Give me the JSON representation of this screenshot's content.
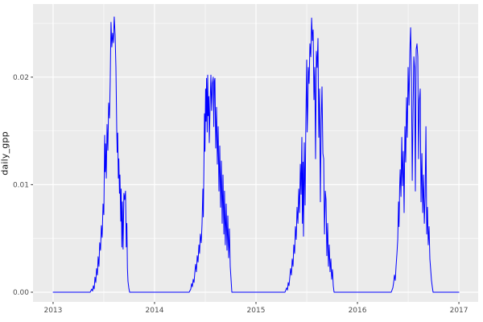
{
  "colors": {
    "background": "#FFFFFF",
    "panel": "#EBEBEB",
    "grid_major": "#FFFFFF",
    "grid_minor": "#FFFFFF",
    "tick": "#333333",
    "tick_label": "#4D4D4D",
    "axis_title": "#111111",
    "line": "#0000FF"
  },
  "chart_data": {
    "type": "line",
    "title": "",
    "xlabel": "",
    "ylabel": "daily_gpp",
    "theme": "ggplot-gray",
    "grid": true,
    "legend": false,
    "xlim": [
      2012.802,
      2017.19
    ],
    "ylim": [
      -0.0009,
      0.0268
    ],
    "x_ticks": {
      "values": [
        2013,
        2014,
        2015,
        2016,
        2017
      ],
      "labels": [
        "2013",
        "2014",
        "2015",
        "2016",
        "2017"
      ],
      "minor": [
        2013.5,
        2014.5,
        2015.5,
        2016.5
      ]
    },
    "y_ticks": {
      "values": [
        0,
        0.01,
        0.02
      ],
      "labels": [
        "0.00",
        "0.01",
        "0.02"
      ],
      "minor": [
        0.005,
        0.015,
        0.025
      ]
    },
    "series": [
      {
        "name": "daily_gpp",
        "color": "#0000FF",
        "points": [
          [
            2013.0,
            0
          ],
          [
            2013.365,
            0
          ],
          [
            2013.381,
            0.0003
          ],
          [
            2013.389,
            0.0001
          ],
          [
            2013.397,
            0.0006
          ],
          [
            2013.405,
            0.0003
          ],
          [
            2013.413,
            0.0014
          ],
          [
            2013.421,
            0.0009
          ],
          [
            2013.429,
            0.0022
          ],
          [
            2013.437,
            0.0016
          ],
          [
            2013.444,
            0.0033
          ],
          [
            2013.452,
            0.0024
          ],
          [
            2013.46,
            0.0046
          ],
          [
            2013.468,
            0.0039
          ],
          [
            2013.476,
            0.0062
          ],
          [
            2013.484,
            0.0051
          ],
          [
            2013.492,
            0.0082
          ],
          [
            2013.5,
            0.0072
          ],
          [
            2013.508,
            0.0146
          ],
          [
            2013.513,
            0.0112
          ],
          [
            2013.517,
            0.0138
          ],
          [
            2013.524,
            0.0106
          ],
          [
            2013.532,
            0.0156
          ],
          [
            2013.54,
            0.0132
          ],
          [
            2013.548,
            0.0176
          ],
          [
            2013.556,
            0.0162
          ],
          [
            2013.563,
            0.0196
          ],
          [
            2013.571,
            0.0251
          ],
          [
            2013.579,
            0.0228
          ],
          [
            2013.587,
            0.0241
          ],
          [
            2013.595,
            0.0232
          ],
          [
            2013.603,
            0.0256
          ],
          [
            2013.611,
            0.0239
          ],
          [
            2013.619,
            0.0209
          ],
          [
            2013.627,
            0.0152
          ],
          [
            2013.632,
            0.013
          ],
          [
            2013.637,
            0.0148
          ],
          [
            2013.643,
            0.0106
          ],
          [
            2013.648,
            0.0124
          ],
          [
            2013.654,
            0.0092
          ],
          [
            2013.659,
            0.0109
          ],
          [
            2013.667,
            0.0066
          ],
          [
            2013.671,
            0.0096
          ],
          [
            2013.678,
            0.0042
          ],
          [
            2013.683,
            0.0084
          ],
          [
            2013.69,
            0.004
          ],
          [
            2013.698,
            0.0092
          ],
          [
            2013.706,
            0.0086
          ],
          [
            2013.714,
            0.0094
          ],
          [
            2013.722,
            0.0042
          ],
          [
            2013.727,
            0.0064
          ],
          [
            2013.733,
            0.0022
          ],
          [
            2013.738,
            0.001
          ],
          [
            2013.746,
            0.0004
          ],
          [
            2013.754,
            0
          ],
          [
            2014.341,
            0
          ],
          [
            2014.357,
            0.0003
          ],
          [
            2014.365,
            0.0008
          ],
          [
            2014.373,
            0.0005
          ],
          [
            2014.381,
            0.0012
          ],
          [
            2014.389,
            0.0009
          ],
          [
            2014.397,
            0.0018
          ],
          [
            2014.405,
            0.0026
          ],
          [
            2014.413,
            0.0019
          ],
          [
            2014.421,
            0.0034
          ],
          [
            2014.429,
            0.0028
          ],
          [
            2014.437,
            0.0044
          ],
          [
            2014.444,
            0.0036
          ],
          [
            2014.452,
            0.0054
          ],
          [
            2014.46,
            0.0046
          ],
          [
            2014.468,
            0.0064
          ],
          [
            2014.476,
            0.0096
          ],
          [
            2014.481,
            0.007
          ],
          [
            2014.487,
            0.0122
          ],
          [
            2014.492,
            0.0166
          ],
          [
            2014.497,
            0.0131
          ],
          [
            2014.503,
            0.0189
          ],
          [
            2014.508,
            0.0159
          ],
          [
            2014.513,
            0.0199
          ],
          [
            2014.519,
            0.0149
          ],
          [
            2014.524,
            0.0202
          ],
          [
            2014.529,
            0.0164
          ],
          [
            2014.535,
            0.0182
          ],
          [
            2014.54,
            0.0139
          ],
          [
            2014.548,
            0.0174
          ],
          [
            2014.556,
            0.0202
          ],
          [
            2014.563,
            0.0169
          ],
          [
            2014.571,
            0.0194
          ],
          [
            2014.579,
            0.02
          ],
          [
            2014.584,
            0.0154
          ],
          [
            2014.59,
            0.0196
          ],
          [
            2014.595,
            0.0199
          ],
          [
            2014.603,
            0.0134
          ],
          [
            2014.611,
            0.0172
          ],
          [
            2014.619,
            0.0119
          ],
          [
            2014.627,
            0.0154
          ],
          [
            2014.635,
            0.0094
          ],
          [
            2014.643,
            0.0136
          ],
          [
            2014.651,
            0.0079
          ],
          [
            2014.659,
            0.0122
          ],
          [
            2014.667,
            0.0064
          ],
          [
            2014.675,
            0.0109
          ],
          [
            2014.683,
            0.0054
          ],
          [
            2014.69,
            0.0094
          ],
          [
            2014.698,
            0.0044
          ],
          [
            2014.706,
            0.0082
          ],
          [
            2014.714,
            0.0039
          ],
          [
            2014.722,
            0.0071
          ],
          [
            2014.73,
            0.0032
          ],
          [
            2014.738,
            0.0059
          ],
          [
            2014.746,
            0.0024
          ],
          [
            2014.754,
            0.0012
          ],
          [
            2014.762,
            0
          ],
          [
            2015.286,
            0
          ],
          [
            2015.302,
            0.0004
          ],
          [
            2015.31,
            0.0002
          ],
          [
            2015.317,
            0.0009
          ],
          [
            2015.325,
            0.0006
          ],
          [
            2015.333,
            0.0014
          ],
          [
            2015.341,
            0.0022
          ],
          [
            2015.349,
            0.0016
          ],
          [
            2015.357,
            0.0031
          ],
          [
            2015.365,
            0.0024
          ],
          [
            2015.373,
            0.0044
          ],
          [
            2015.381,
            0.0036
          ],
          [
            2015.389,
            0.0061
          ],
          [
            2015.397,
            0.0049
          ],
          [
            2015.405,
            0.0079
          ],
          [
            2015.413,
            0.0064
          ],
          [
            2015.421,
            0.0096
          ],
          [
            2015.429,
            0.0074
          ],
          [
            2015.437,
            0.0119
          ],
          [
            2015.444,
            0.0091
          ],
          [
            2015.452,
            0.0144
          ],
          [
            2015.457,
            0.0064
          ],
          [
            2015.463,
            0.0121
          ],
          [
            2015.468,
            0.0052
          ],
          [
            2015.476,
            0.0139
          ],
          [
            2015.484,
            0.0081
          ],
          [
            2015.492,
            0.0161
          ],
          [
            2015.5,
            0.0216
          ],
          [
            2015.505,
            0.0149
          ],
          [
            2015.511,
            0.0174
          ],
          [
            2015.516,
            0.0209
          ],
          [
            2015.524,
            0.0194
          ],
          [
            2015.532,
            0.0231
          ],
          [
            2015.54,
            0.0219
          ],
          [
            2015.548,
            0.0255
          ],
          [
            2015.556,
            0.0234
          ],
          [
            2015.563,
            0.0244
          ],
          [
            2015.571,
            0.0179
          ],
          [
            2015.579,
            0.0209
          ],
          [
            2015.587,
            0.0124
          ],
          [
            2015.595,
            0.0224
          ],
          [
            2015.603,
            0.0209
          ],
          [
            2015.611,
            0.0236
          ],
          [
            2015.619,
            0.0144
          ],
          [
            2015.627,
            0.0189
          ],
          [
            2015.635,
            0.0084
          ],
          [
            2015.643,
            0.0159
          ],
          [
            2015.651,
            0.0191
          ],
          [
            2015.659,
            0.0129
          ],
          [
            2015.667,
            0.0124
          ],
          [
            2015.675,
            0.0054
          ],
          [
            2015.683,
            0.0094
          ],
          [
            2015.69,
            0.0086
          ],
          [
            2015.698,
            0.0034
          ],
          [
            2015.706,
            0.0064
          ],
          [
            2015.714,
            0.0024
          ],
          [
            2015.722,
            0.0044
          ],
          [
            2015.73,
            0.0019
          ],
          [
            2015.738,
            0.0031
          ],
          [
            2015.746,
            0.0012
          ],
          [
            2015.754,
            0.0021
          ],
          [
            2015.762,
            0.0006
          ],
          [
            2015.77,
            0
          ],
          [
            2016.333,
            0
          ],
          [
            2016.349,
            0.0004
          ],
          [
            2016.357,
            0.0009
          ],
          [
            2016.365,
            0.0016
          ],
          [
            2016.373,
            0.0011
          ],
          [
            2016.381,
            0.0024
          ],
          [
            2016.389,
            0.0036
          ],
          [
            2016.397,
            0.0049
          ],
          [
            2016.405,
            0.0084
          ],
          [
            2016.41,
            0.0061
          ],
          [
            2016.416,
            0.0099
          ],
          [
            2016.421,
            0.0114
          ],
          [
            2016.429,
            0.0089
          ],
          [
            2016.437,
            0.0144
          ],
          [
            2016.444,
            0.0099
          ],
          [
            2016.452,
            0.0131
          ],
          [
            2016.46,
            0.0074
          ],
          [
            2016.468,
            0.0154
          ],
          [
            2016.476,
            0.0121
          ],
          [
            2016.484,
            0.0181
          ],
          [
            2016.492,
            0.0144
          ],
          [
            2016.5,
            0.0209
          ],
          [
            2016.508,
            0.0174
          ],
          [
            2016.516,
            0.0224
          ],
          [
            2016.524,
            0.0246
          ],
          [
            2016.532,
            0.0199
          ],
          [
            2016.54,
            0.0104
          ],
          [
            2016.548,
            0.0169
          ],
          [
            2016.556,
            0.0219
          ],
          [
            2016.563,
            0.0209
          ],
          [
            2016.571,
            0.0094
          ],
          [
            2016.579,
            0.0226
          ],
          [
            2016.587,
            0.0231
          ],
          [
            2016.595,
            0.0219
          ],
          [
            2016.603,
            0.0124
          ],
          [
            2016.611,
            0.0179
          ],
          [
            2016.619,
            0.0189
          ],
          [
            2016.627,
            0.0084
          ],
          [
            2016.635,
            0.0129
          ],
          [
            2016.643,
            0.0074
          ],
          [
            2016.651,
            0.0109
          ],
          [
            2016.659,
            0.0064
          ],
          [
            2016.667,
            0.0089
          ],
          [
            2016.675,
            0.0154
          ],
          [
            2016.683,
            0.0054
          ],
          [
            2016.69,
            0.0079
          ],
          [
            2016.698,
            0.0044
          ],
          [
            2016.706,
            0.0061
          ],
          [
            2016.714,
            0.0031
          ],
          [
            2016.722,
            0.0021
          ],
          [
            2016.73,
            0.0011
          ],
          [
            2016.738,
            0.0005
          ],
          [
            2016.746,
            0
          ],
          [
            2017.0,
            0
          ]
        ]
      }
    ]
  }
}
